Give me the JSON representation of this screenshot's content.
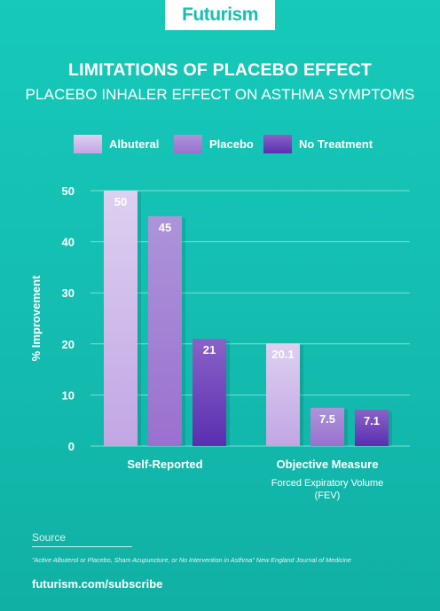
{
  "brand": "Futurism",
  "header": {
    "title": "LIMITATIONS OF PLACEBO EFFECT",
    "subtitle": "PLACEBO INHALER EFFECT ON ASTHMA SYMPTOMS"
  },
  "footer": {
    "source_label": "Source",
    "source_text": "\"Active Albuterol or Placebo, Sham Acupuncture, or No Intervention in Asthma\" New England Journal of Medicine",
    "url": "futurism.com/subscribe"
  },
  "chart_data": {
    "type": "bar",
    "title": "LIMITATIONS OF PLACEBO EFFECT",
    "subtitle": "PLACEBO INHALER EFFECT ON ASTHMA SYMPTOMS",
    "xlabel": "",
    "ylabel": "% Improvement",
    "ylim": [
      0,
      50
    ],
    "yticks": [
      0,
      10,
      20,
      30,
      40,
      50
    ],
    "grid": true,
    "legend_position": "top",
    "categories": [
      "Self-Reported",
      "Objective Measure"
    ],
    "category_sublabels": [
      "",
      "Forced Expiratory Volume\n(FEV)"
    ],
    "series": [
      {
        "name": "Albuteral",
        "values": [
          50,
          20.1
        ],
        "value_labels": [
          "50",
          "20.1"
        ],
        "color_top": "#ddd0f0",
        "color_bottom": "#c2a6e4"
      },
      {
        "name": "Placebo",
        "values": [
          45,
          7.5
        ],
        "value_labels": [
          "45",
          "7.5"
        ],
        "color_top": "#ad94d9",
        "color_bottom": "#9a70cf"
      },
      {
        "name": "No Treatment",
        "values": [
          21,
          7.1
        ],
        "value_labels": [
          "21",
          "7.1"
        ],
        "color_top": "#8a62c6",
        "color_bottom": "#5a2fb0"
      }
    ]
  }
}
